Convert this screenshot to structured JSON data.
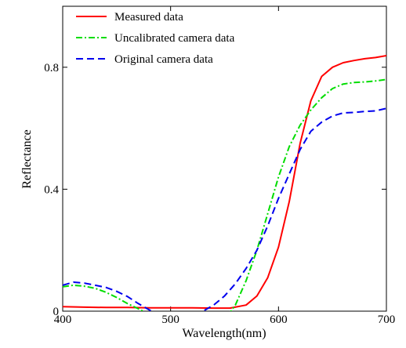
{
  "chart_data": {
    "type": "line",
    "title": "",
    "xlabel": "Wavelength(nm)",
    "ylabel": "Reflectance",
    "xlim": [
      400,
      700
    ],
    "ylim": [
      0,
      1.0
    ],
    "x_ticks": [
      400,
      500,
      600,
      700
    ],
    "x_tick_labels": [
      "400",
      "500",
      "600",
      "700"
    ],
    "y_ticks": [
      0,
      0.4,
      0.8
    ],
    "y_tick_labels": [
      "0",
      "0.4",
      "0.8"
    ],
    "grid": false,
    "legend_position": "top-left",
    "series": [
      {
        "name": "Measured data",
        "color": "#ff0000",
        "dash": "solid",
        "x": [
          400,
          420,
          440,
          460,
          480,
          500,
          520,
          540,
          555,
          570,
          580,
          590,
          600,
          610,
          620,
          630,
          640,
          650,
          660,
          670,
          680,
          690,
          700
        ],
        "y": [
          0.015,
          0.013,
          0.012,
          0.012,
          0.011,
          0.011,
          0.011,
          0.01,
          0.01,
          0.02,
          0.05,
          0.11,
          0.21,
          0.36,
          0.55,
          0.69,
          0.77,
          0.8,
          0.815,
          0.822,
          0.828,
          0.832,
          0.838
        ]
      },
      {
        "name": "Uncalibrated camera data",
        "color": "#00dd00",
        "dash": "dashdot",
        "x": [
          400,
          410,
          420,
          430,
          440,
          450,
          460,
          470,
          480,
          490,
          500,
          520,
          540,
          555,
          560,
          570,
          580,
          590,
          600,
          610,
          620,
          630,
          640,
          650,
          660,
          670,
          680,
          690,
          700
        ],
        "y": [
          0.08,
          0.085,
          0.082,
          0.075,
          0.062,
          0.045,
          0.025,
          0.008,
          -0.01,
          -0.025,
          -0.04,
          -0.05,
          -0.04,
          -0.005,
          0.02,
          0.1,
          0.2,
          0.32,
          0.44,
          0.54,
          0.61,
          0.66,
          0.7,
          0.73,
          0.745,
          0.75,
          0.752,
          0.755,
          0.76
        ]
      },
      {
        "name": "Original camera data",
        "color": "#0000ee",
        "dash": "dashed",
        "x": [
          400,
          410,
          420,
          430,
          440,
          450,
          460,
          470,
          480,
          490,
          500,
          520,
          530,
          540,
          550,
          560,
          570,
          580,
          590,
          600,
          610,
          620,
          630,
          640,
          650,
          660,
          670,
          680,
          690,
          700
        ],
        "y": [
          0.085,
          0.095,
          0.092,
          0.085,
          0.078,
          0.065,
          0.048,
          0.025,
          0.005,
          -0.015,
          -0.035,
          -0.02,
          0.0,
          0.02,
          0.05,
          0.09,
          0.14,
          0.2,
          0.28,
          0.37,
          0.45,
          0.53,
          0.59,
          0.62,
          0.64,
          0.65,
          0.652,
          0.655,
          0.657,
          0.665
        ]
      }
    ]
  }
}
